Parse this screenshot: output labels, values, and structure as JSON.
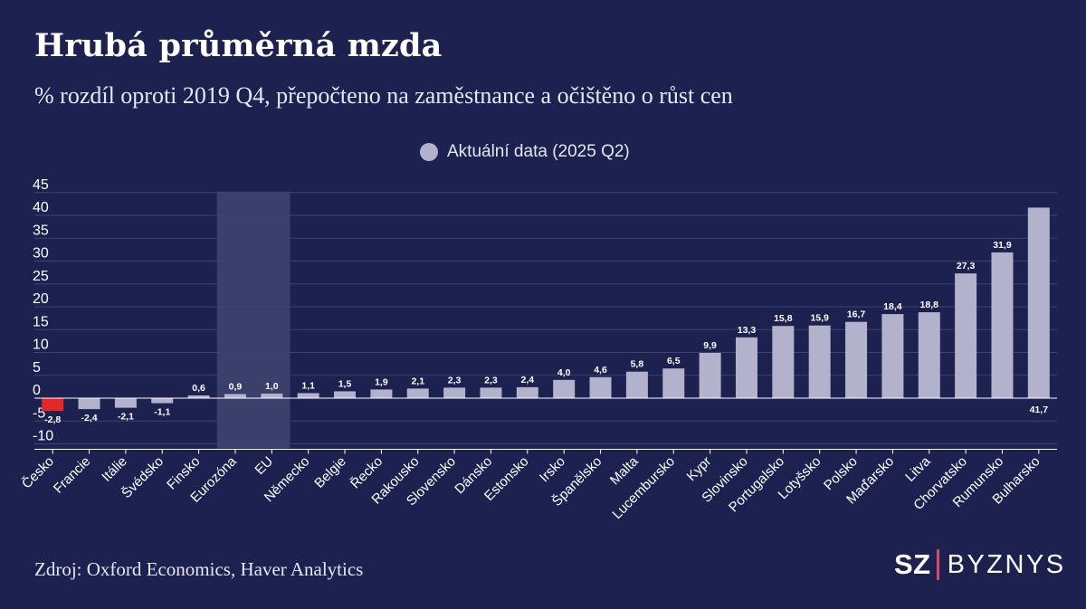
{
  "title": "Hrubá průměrná mzda",
  "subtitle": "% rozdíl oproti 2019 Q4, přepočteno na zaměstnance a očištěno o růst cen",
  "source": "Zdroj: Oxford Economics, Haver Analytics",
  "brand": {
    "prefix": "SZ",
    "name": "BYZNYS"
  },
  "colors": {
    "background": "#1c2150",
    "bar": "#b2b2cc",
    "bar_highlight": "#e42828",
    "eu_band": "#3a3f6b",
    "grid": "#3d4373",
    "axis": "#ffffff",
    "brand_separator": "#d94b5c"
  },
  "chart_data": {
    "type": "bar",
    "legend": {
      "label": "Aktuální data (2025 Q2)",
      "position": "top-center"
    },
    "categories": [
      "Česko",
      "Francie",
      "Itálie",
      "Švédsko",
      "Finsko",
      "Eurozóna",
      "EU",
      "Německo",
      "Belgie",
      "Řecko",
      "Rakousko",
      "Slovensko",
      "Dánsko",
      "Estonsko",
      "Irsko",
      "Španělsko",
      "Malta",
      "Lucembursko",
      "Kypr",
      "Slovinsko",
      "Portugalsko",
      "Lotyšsko",
      "Polsko",
      "Maďarsko",
      "Litva",
      "Chorvatsko",
      "Rumunsko",
      "Bulharsko"
    ],
    "values": [
      -2.8,
      -2.4,
      -2.1,
      -1.1,
      0.6,
      0.9,
      1.0,
      1.1,
      1.5,
      1.9,
      2.1,
      2.3,
      2.3,
      2.4,
      4.0,
      4.6,
      5.8,
      6.5,
      9.9,
      13.3,
      15.8,
      15.9,
      16.7,
      18.4,
      18.8,
      27.3,
      31.9,
      41.7
    ],
    "value_labels": [
      "-2,8",
      "-2,4",
      "-2,1",
      "-1,1",
      "0,6",
      "0,9",
      "1,0",
      "1,1",
      "1,5",
      "1,9",
      "2,1",
      "2,3",
      "2,3",
      "2,4",
      "4,0",
      "4,6",
      "5,8",
      "6,5",
      "9,9",
      "13,3",
      "15,8",
      "15,9",
      "16,7",
      "18,4",
      "18,8",
      "27,3",
      "31,9",
      "41,7"
    ],
    "highlight_category": "Česko",
    "highlight_band_categories": [
      "Eurozóna",
      "EU"
    ],
    "ylim": [
      -11,
      45
    ],
    "yticks": [
      45,
      40,
      35,
      30,
      25,
      20,
      15,
      10,
      5,
      0,
      -5,
      -10
    ],
    "ytick_labels": [
      "45",
      "40",
      "35",
      "30",
      "25",
      "20",
      "15",
      "10",
      "5",
      "0",
      "-5",
      "-10"
    ],
    "grid": true
  }
}
